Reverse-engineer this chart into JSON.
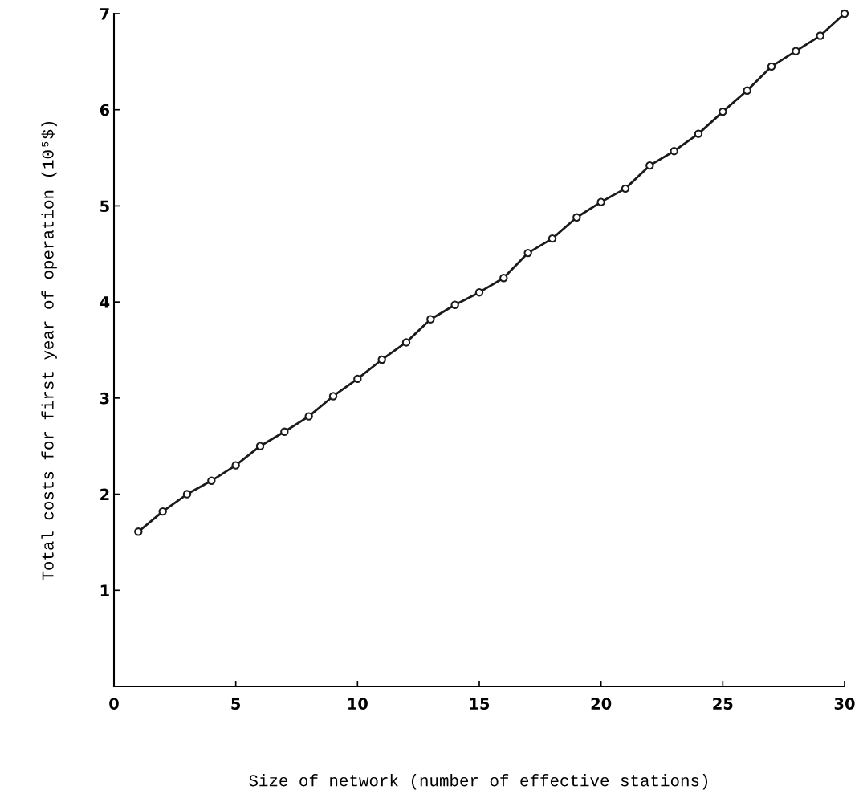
{
  "chart_data": {
    "type": "line",
    "xlabel": "Size of network (number of effective stations)",
    "ylabel": "Total costs for first year of operation (10⁵$)",
    "x": [
      1,
      2,
      3,
      4,
      5,
      6,
      7,
      8,
      9,
      10,
      11,
      12,
      13,
      14,
      15,
      16,
      17,
      18,
      19,
      20,
      21,
      22,
      23,
      24,
      25,
      26,
      27,
      28,
      29,
      30
    ],
    "series": [
      {
        "color": "#1a1a1a",
        "values": [
          1.61,
          1.82,
          2.0,
          2.14,
          2.3,
          2.5,
          2.65,
          2.81,
          3.02,
          3.2,
          3.4,
          3.58,
          3.82,
          3.97,
          4.1,
          4.25,
          4.51,
          4.66,
          4.88,
          5.04,
          5.18,
          5.42,
          5.57,
          5.75,
          5.98,
          6.2,
          6.45,
          6.61,
          6.77,
          7.0
        ]
      }
    ],
    "xlim": [
      0,
      30
    ],
    "ylim": [
      0,
      7
    ],
    "xticks": [
      0,
      5,
      10,
      15,
      20,
      25,
      30
    ],
    "yticks": [
      1,
      2,
      3,
      4,
      5,
      6,
      7
    ],
    "marker": "circle",
    "line_style": "solid",
    "grid": false,
    "legend": false
  }
}
